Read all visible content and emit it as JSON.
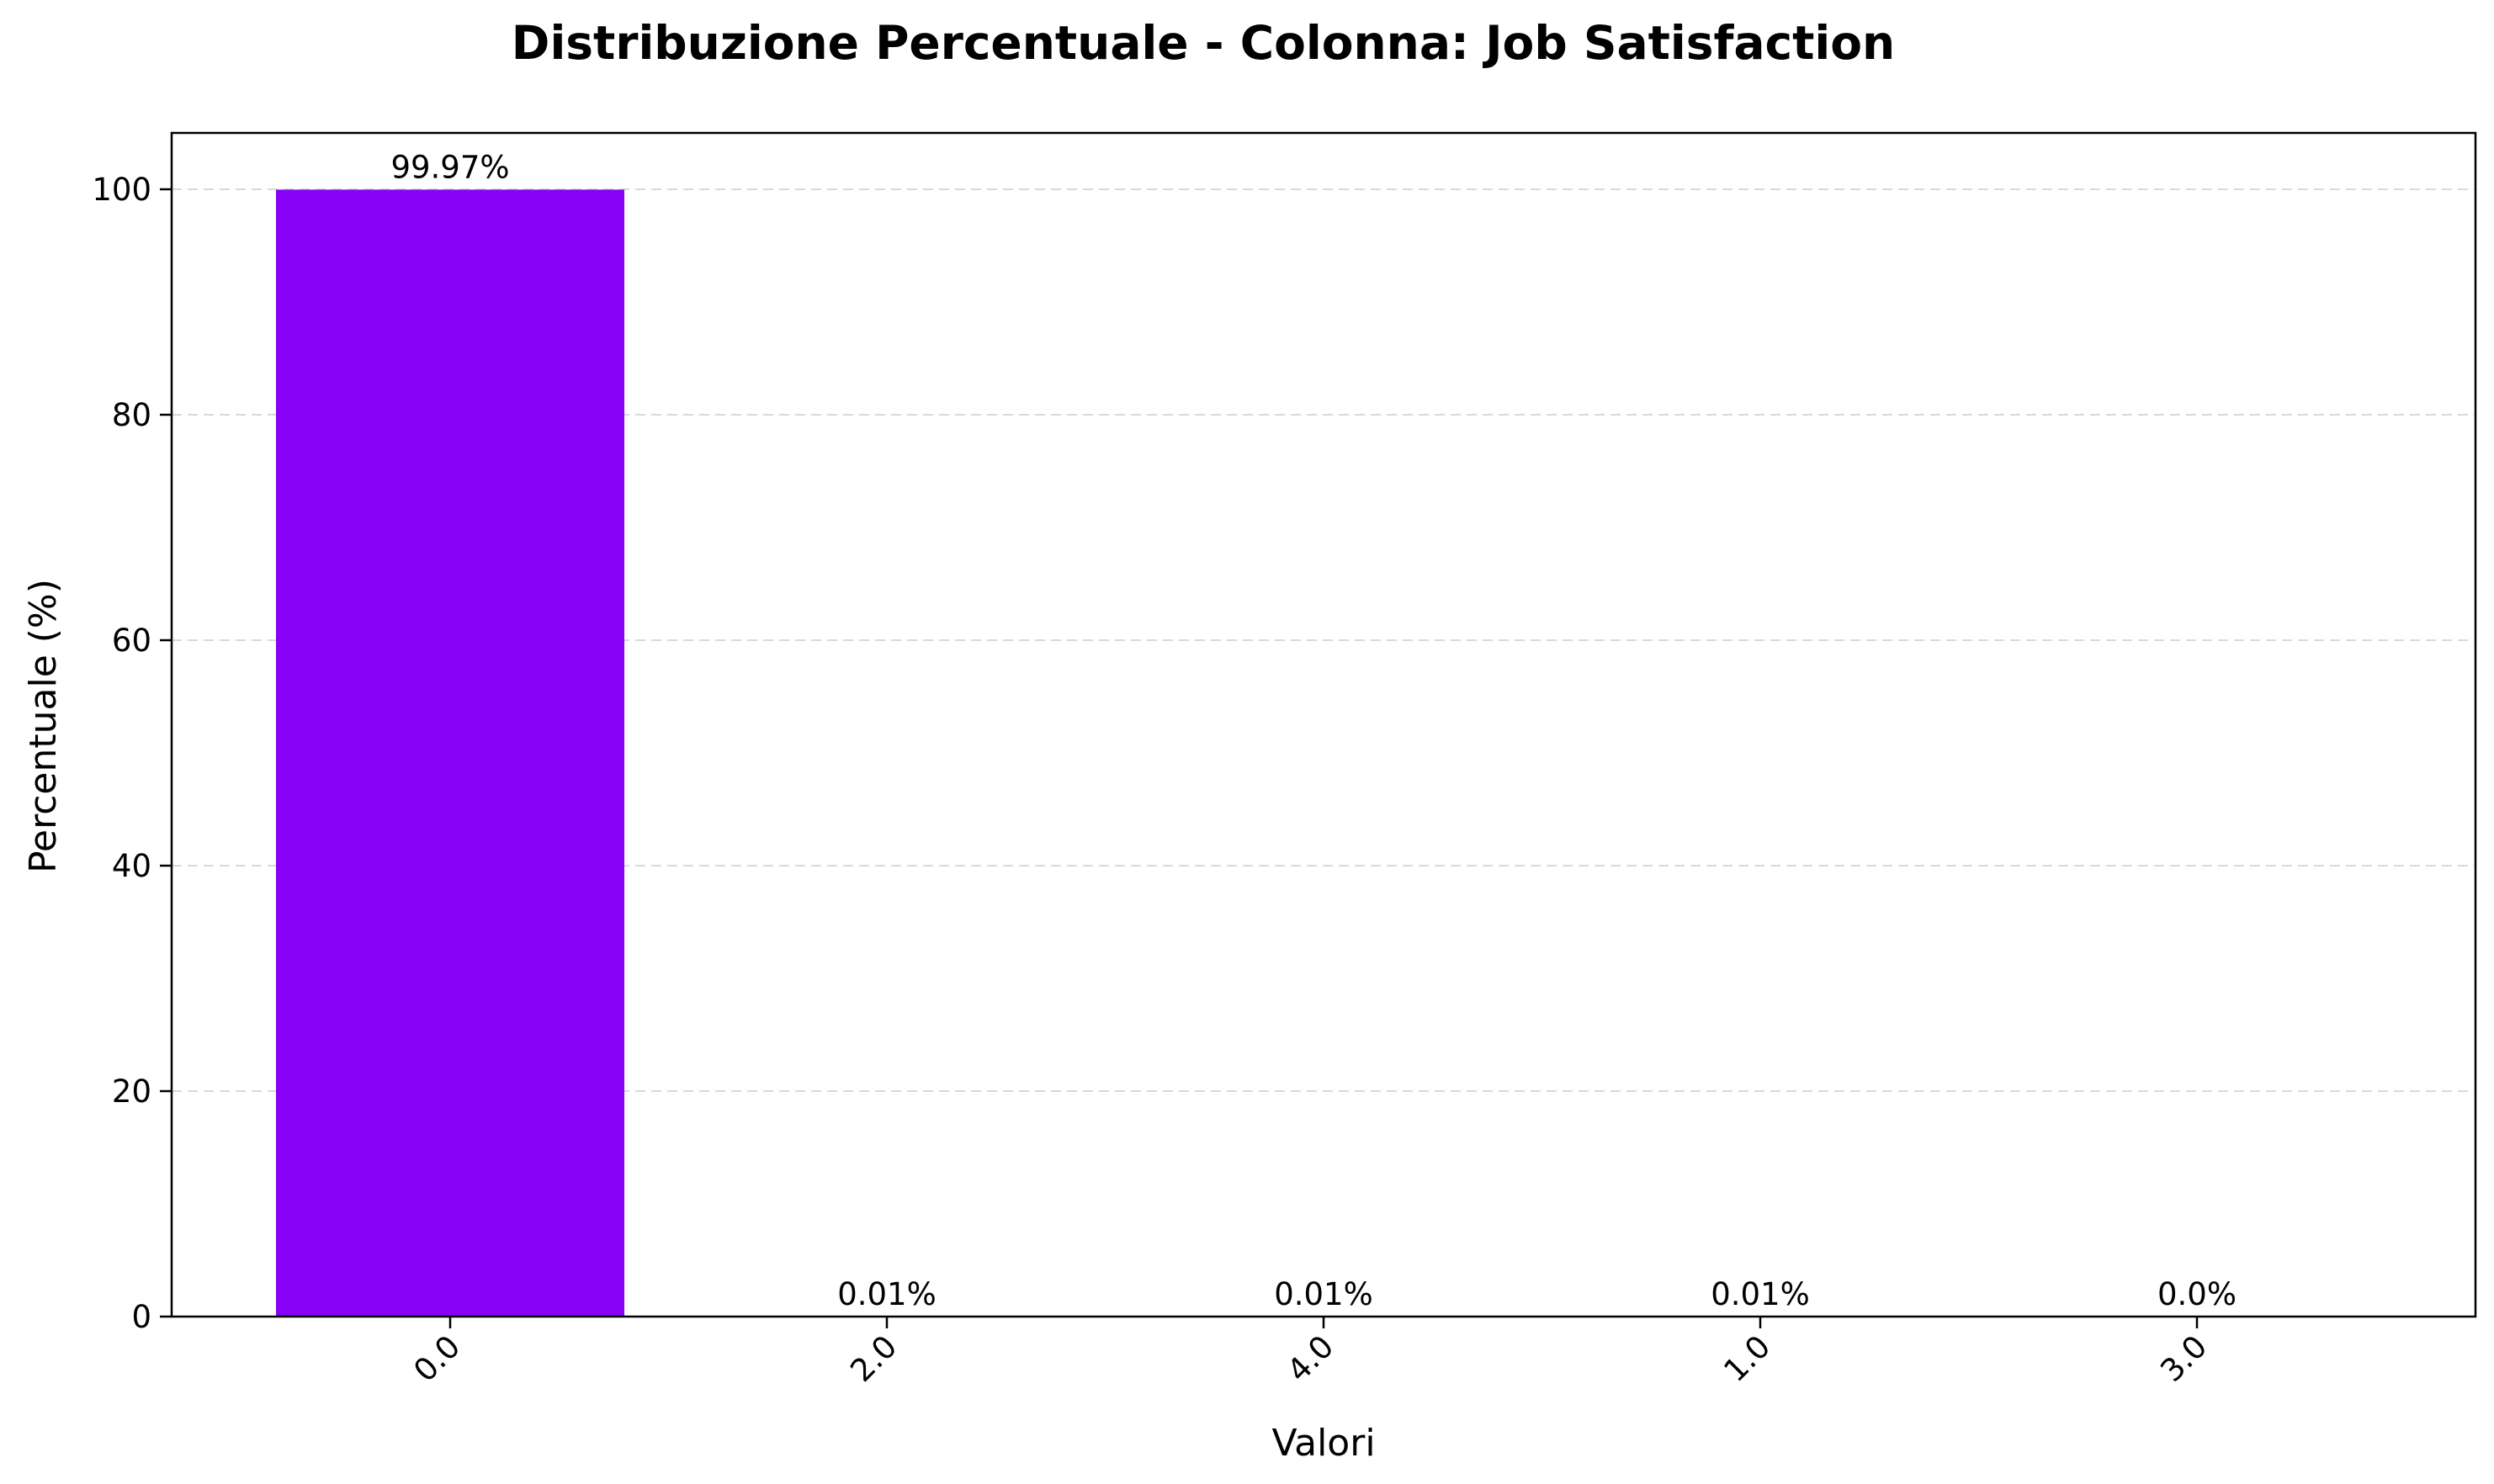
{
  "chart_data": {
    "type": "bar",
    "title": "Distribuzione Percentuale - Colonna: Job Satisfaction",
    "xlabel": "Valori",
    "ylabel": "Percentuale (%)",
    "categories": [
      "0.0",
      "2.0",
      "4.0",
      "1.0",
      "3.0"
    ],
    "values": [
      99.97,
      0.01,
      0.01,
      0.01,
      0.0
    ],
    "data_labels": [
      "99.97%",
      "0.01%",
      "0.01%",
      "0.01%",
      "0.0%"
    ],
    "ylim": [
      0,
      105
    ],
    "yticks": [
      0,
      20,
      40,
      60,
      80,
      100
    ],
    "ytick_labels": [
      "0",
      "20",
      "40",
      "60",
      "80",
      "100"
    ],
    "grid": "y-dashed",
    "bar_color": "#8800f5",
    "x_tick_rotation": "45"
  }
}
